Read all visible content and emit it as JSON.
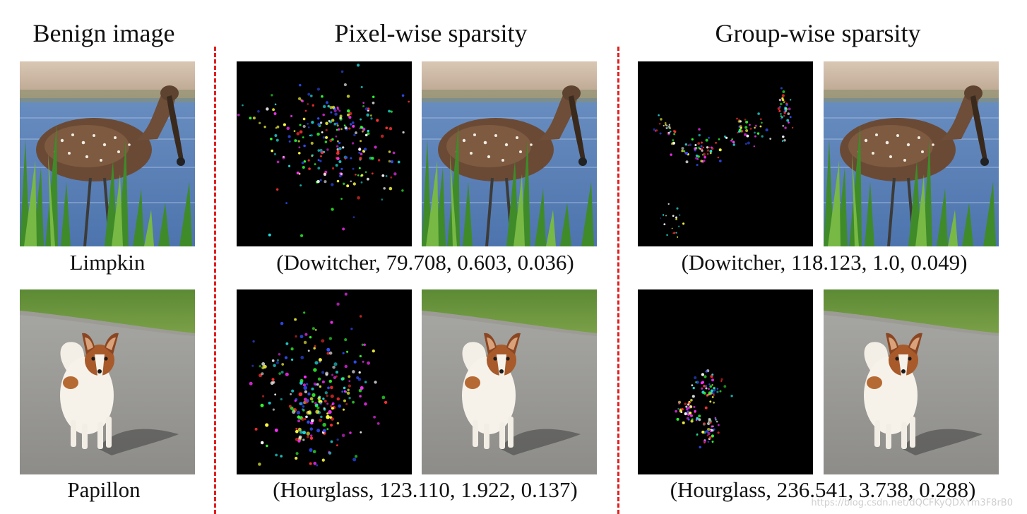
{
  "headers": {
    "benign": "Benign image",
    "pixel": "Pixel-wise sparsity",
    "group": "Group-wise sparsity"
  },
  "rows": [
    {
      "benign_label": "Limpkin",
      "pixel_caption": "(Dowitcher, 79.708, 0.603, 0.036)",
      "group_caption": "(Dowitcher, 118.123, 1.0, 0.049)"
    },
    {
      "benign_label": "Papillon",
      "pixel_caption": "(Hourglass, 123.110, 1.922, 0.137)",
      "group_caption": "(Hourglass, 236.541, 3.738, 0.288)"
    }
  ],
  "watermark": "https://blog.csdn.net/dQCFKyQDXYm3F8rB0",
  "colors": {
    "divider": "#e02020",
    "perturbation_bg": "#000000",
    "perturbation_dots": [
      "#ff3030",
      "#30ff30",
      "#3050ff",
      "#20e0e0",
      "#ff30ff",
      "#ffffff",
      "#ffff40"
    ]
  }
}
